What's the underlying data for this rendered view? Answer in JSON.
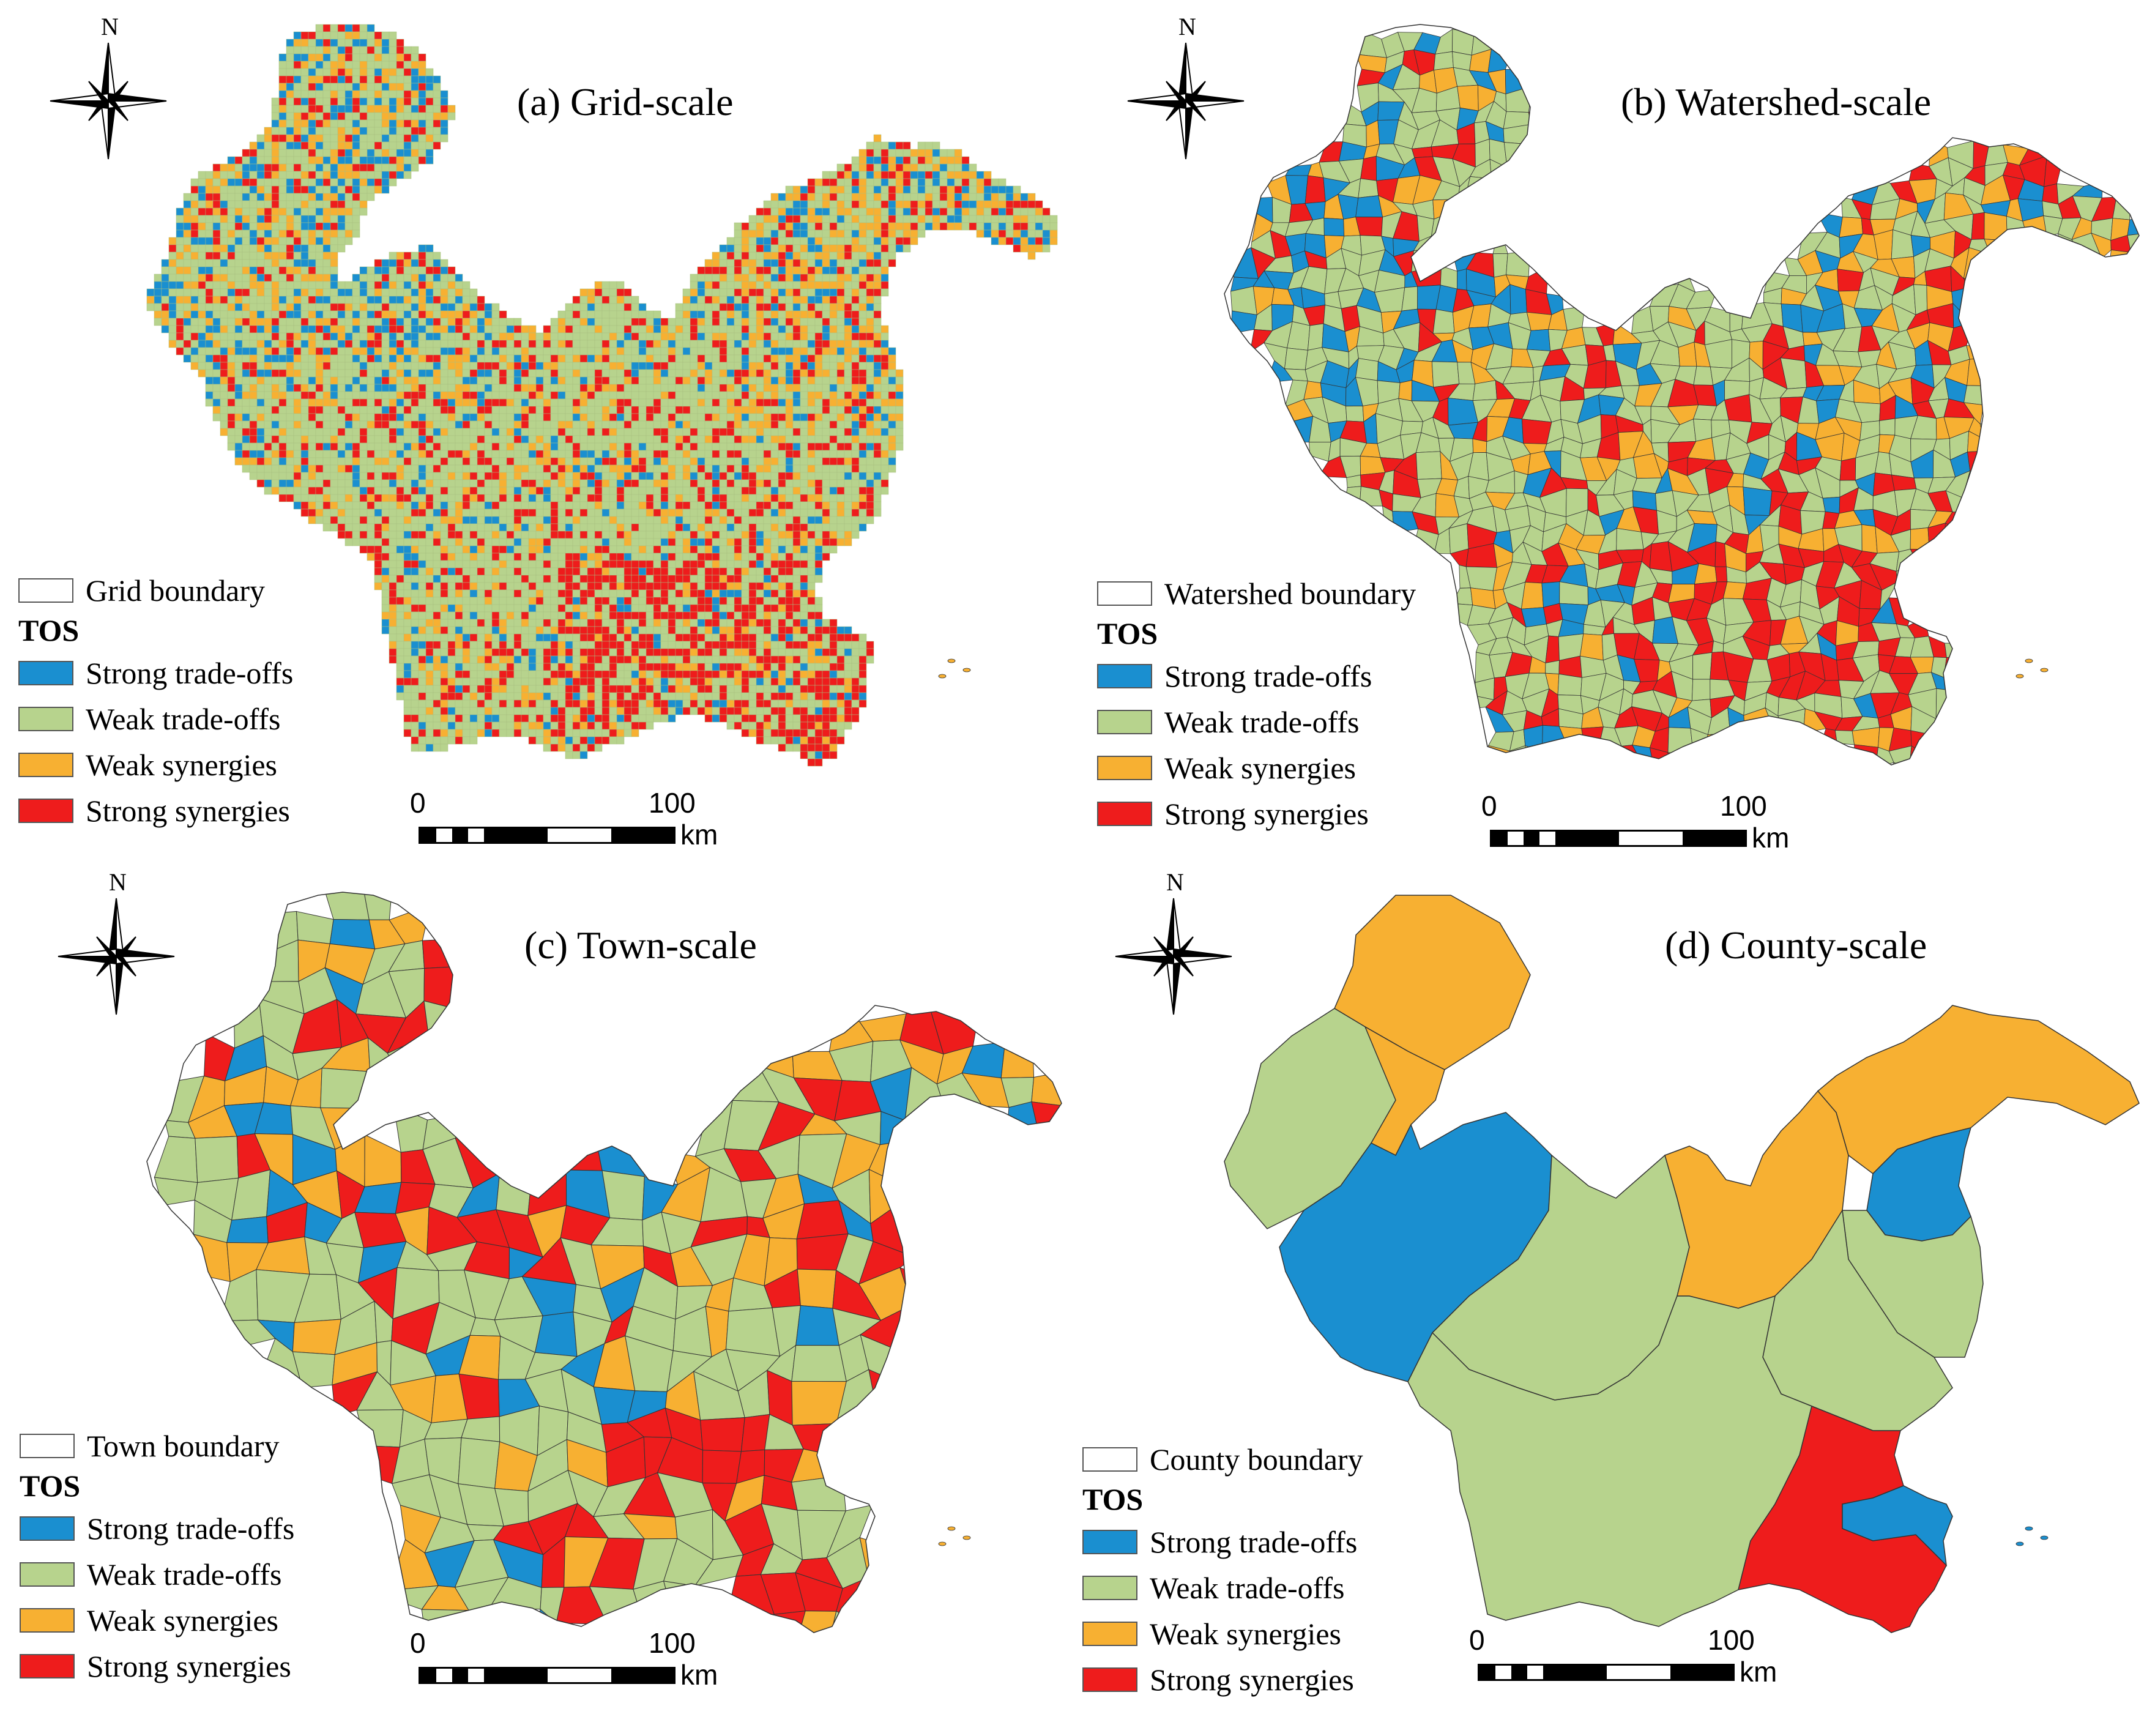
{
  "colors": {
    "strong_tradeoffs": "#1a8fd0",
    "weak_tradeoffs": "#b7d38d",
    "weak_synergies": "#f7b032",
    "strong_synergies": "#ee1c1c",
    "boundary": "#333333"
  },
  "north_label": "N",
  "legend_common": {
    "heading": "TOS",
    "items": [
      "Strong trade-offs",
      "Weak trade-offs",
      "Weak synergies",
      "Strong synergies"
    ]
  },
  "scalebar": {
    "tick_start": "0",
    "tick_end": "100",
    "unit": "km"
  },
  "panels": [
    {
      "title": "(a) Grid-scale",
      "boundary_label": "Grid boundary"
    },
    {
      "title": "(b) Watershed-scale",
      "boundary_label": "Watershed boundary"
    },
    {
      "title": "(c) Town-scale",
      "boundary_label": "Town boundary"
    },
    {
      "title": "(d) County-scale",
      "boundary_label": "County boundary"
    }
  ]
}
